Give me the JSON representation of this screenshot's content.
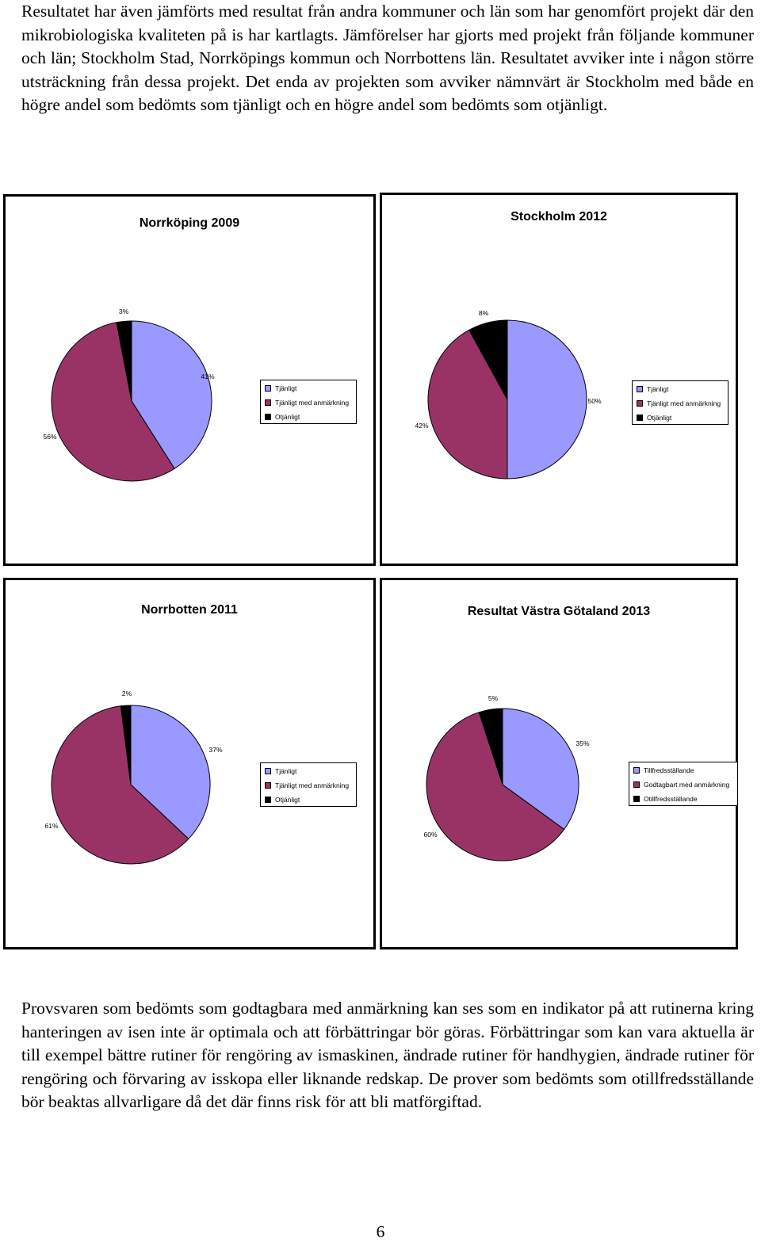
{
  "intro_paragraph": "Resultatet har även jämförts med resultat från andra kommuner och län som har genomfört projekt där den mikrobiologiska kvaliteten på is har kartlagts. Jämförelser har gjorts med projekt från följande kommuner och län; Stockholm Stad, Norrköpings kommun och Norrbottens län. Resultatet avviker inte i någon större utsträckning från dessa projekt. Det enda av projekten som avviker nämnvärt är Stockholm med både en högre andel som bedömts som tjänligt och en högre andel som bedömts som otjänligt.",
  "closing_paragraph": "Provsvaren som bedömts som godtagbara med anmärkning kan ses som en indikator på att rutinerna kring hanteringen av isen inte är optimala och att förbättringar bör göras. Förbättringar som kan vara aktuella är till exempel bättre rutiner för rengöring av ismaskinen, ändrade rutiner för handhygien, ändrade rutiner för rengöring och förvaring av isskopa eller liknande redskap. De prover som bedömts som otillfredsställande bör beaktas allvarligare då det där finns risk för att bli matförgiftad.",
  "page_number": "6",
  "colors": {
    "first": "#9999ff",
    "second": "#993366",
    "third": "#000000"
  },
  "chart_data": [
    {
      "type": "pie",
      "title": "Norrköping 2009",
      "categories": [
        "Tjänligt",
        "Tjänligt med anmärkning",
        "Otjänligt"
      ],
      "values": [
        41,
        56,
        3
      ],
      "labels": [
        "41%",
        "56%",
        "3%"
      ]
    },
    {
      "type": "pie",
      "title": "Stockholm 2012",
      "categories": [
        "Tjänligt",
        "Tjänligt med anmärkning",
        "Otjänligt"
      ],
      "values": [
        50,
        42,
        8
      ],
      "labels": [
        "50%",
        "42%",
        "8%"
      ]
    },
    {
      "type": "pie",
      "title": "Norrbotten 2011",
      "categories": [
        "Tjänligt",
        "Tjänligt med anmärkning",
        "Otjänligt"
      ],
      "values": [
        37,
        61,
        2
      ],
      "labels": [
        "37%",
        "61%",
        "2%"
      ]
    },
    {
      "type": "pie",
      "title": "Resultat Västra Götaland 2013",
      "categories": [
        "Tillfredsställande",
        "Godtagbart med anmärkning",
        "Otillfredsställande"
      ],
      "values": [
        35,
        60,
        5
      ],
      "labels": [
        "35%",
        "60%",
        "5%"
      ]
    }
  ]
}
